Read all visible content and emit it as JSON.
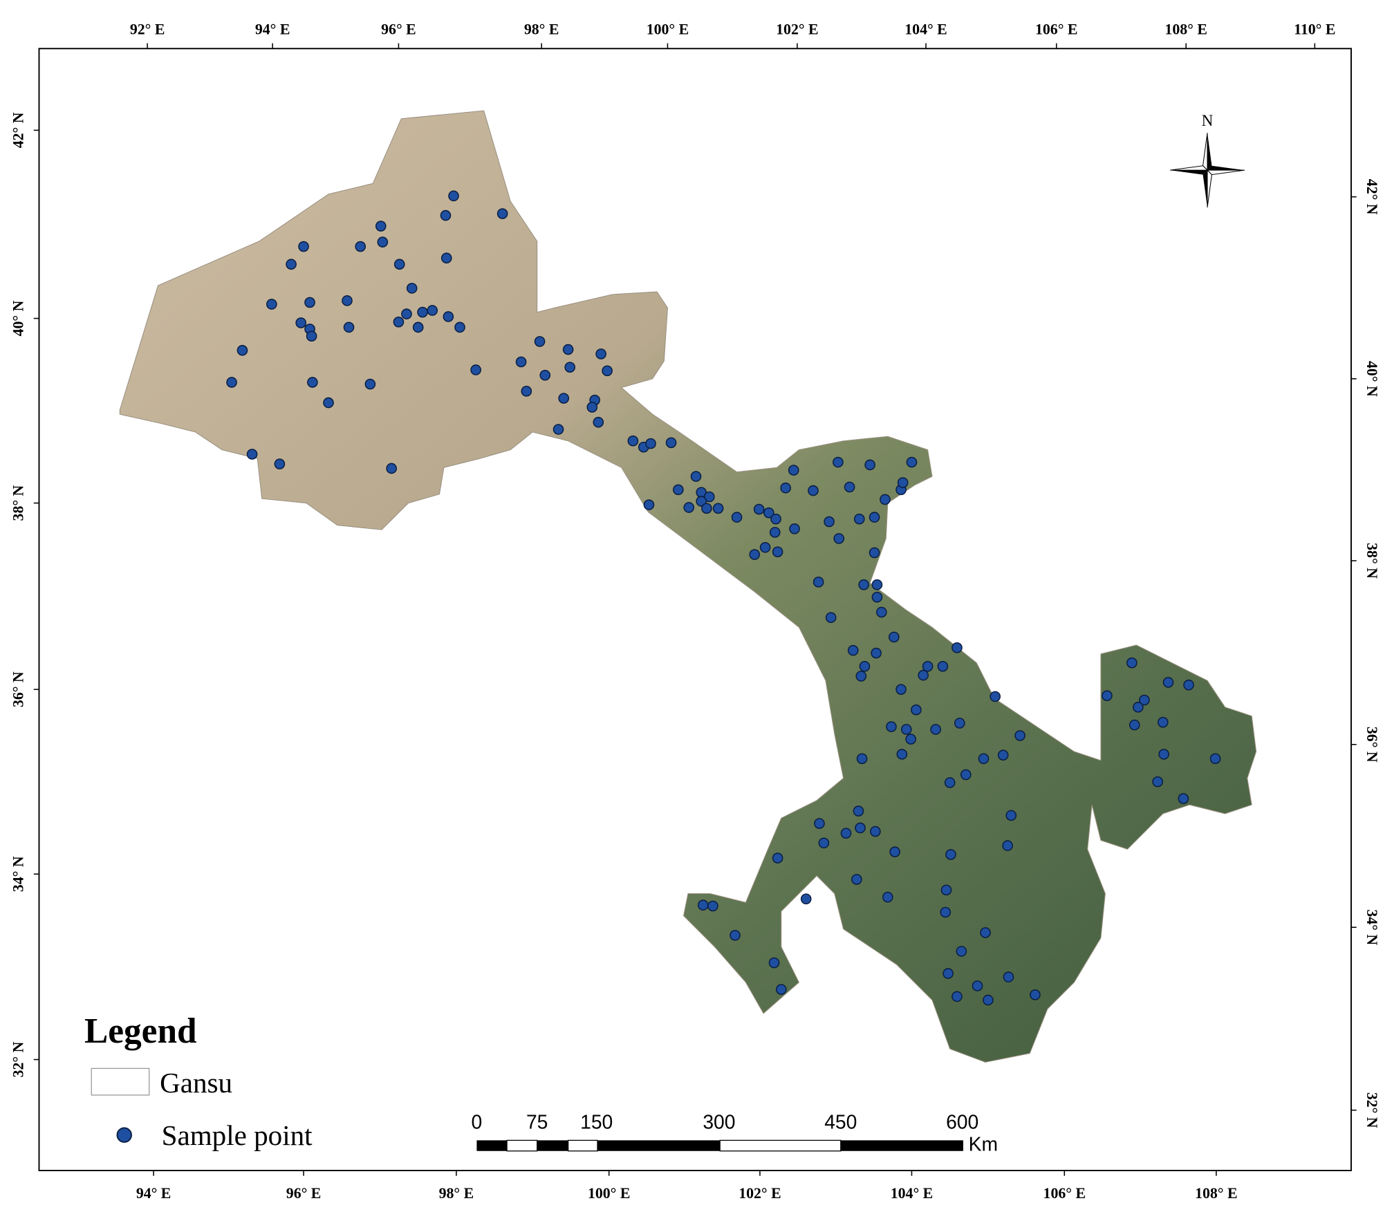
{
  "axis_labels": {
    "top": [
      "92° E",
      "94° E",
      "96° E",
      "98° E",
      "100° E",
      "102° E",
      "104° E",
      "106° E",
      "108° E",
      "110° E"
    ],
    "bottom": [
      "94° E",
      "96° E",
      "98° E",
      "100° E",
      "102° E",
      "104° E",
      "106° E",
      "108° E"
    ],
    "left": [
      "42° N",
      "40° N",
      "38° N",
      "36° N",
      "34° N",
      "32° N"
    ],
    "right": [
      "42° N",
      "40° N",
      "38° N",
      "36° N",
      "34° N",
      "32° N"
    ]
  },
  "legend": {
    "title": "Legend",
    "items": [
      "Gansu",
      "Sample point"
    ]
  },
  "scale_bar": {
    "labels": [
      "0",
      "75",
      "150",
      "300",
      "450",
      "600"
    ],
    "unit": "Km"
  },
  "north_arrow": "N"
}
